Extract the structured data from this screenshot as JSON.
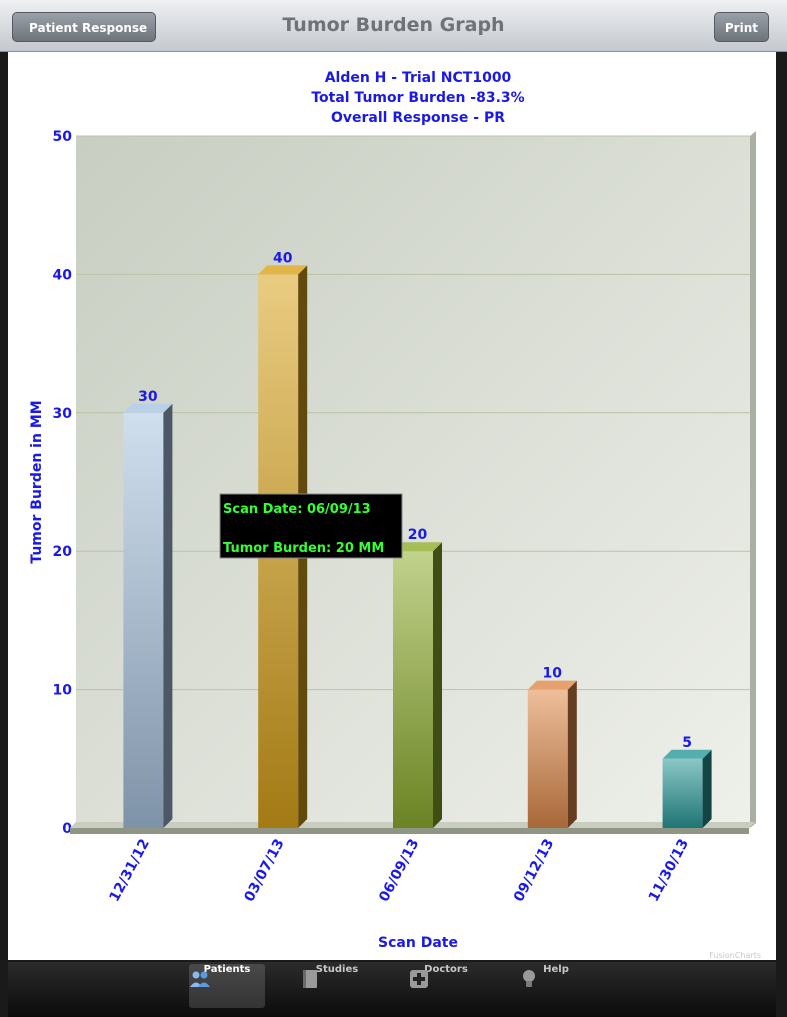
{
  "navbar": {
    "title": "Tumor Burden Graph",
    "back_label": "Patient Response",
    "print_label": "Print"
  },
  "tabs": [
    {
      "label": "Patients",
      "icon": "patients-icon",
      "active": true
    },
    {
      "label": "Studies",
      "icon": "book-icon",
      "active": false
    },
    {
      "label": "Doctors",
      "icon": "plus-icon",
      "active": false
    },
    {
      "label": "Help",
      "icon": "lightbulb-icon",
      "active": false
    }
  ],
  "tooltip": {
    "line1": "Scan Date: 06/09/13",
    "line2": "Tumor Burden: 20 MM"
  },
  "watermark": "FusionCharts",
  "chart_data": {
    "type": "bar",
    "title": [
      "Alden H - Trial NCT1000",
      "Total Tumor Burden -83.3%",
      "Overall Response - PR"
    ],
    "xlabel": "Scan Date",
    "ylabel": "Tumor Burden in MM",
    "ylim": [
      0,
      50
    ],
    "yticks": [
      0,
      10,
      20,
      30,
      40,
      50
    ],
    "categories": [
      "12/31/12",
      "03/07/13",
      "06/09/13",
      "09/12/13",
      "11/30/13"
    ],
    "values": [
      30,
      40,
      20,
      10,
      5
    ],
    "colors": [
      "#a9c4e0",
      "#d9a31a",
      "#8fae2e",
      "#e08a4a",
      "#2a9a9a"
    ]
  }
}
